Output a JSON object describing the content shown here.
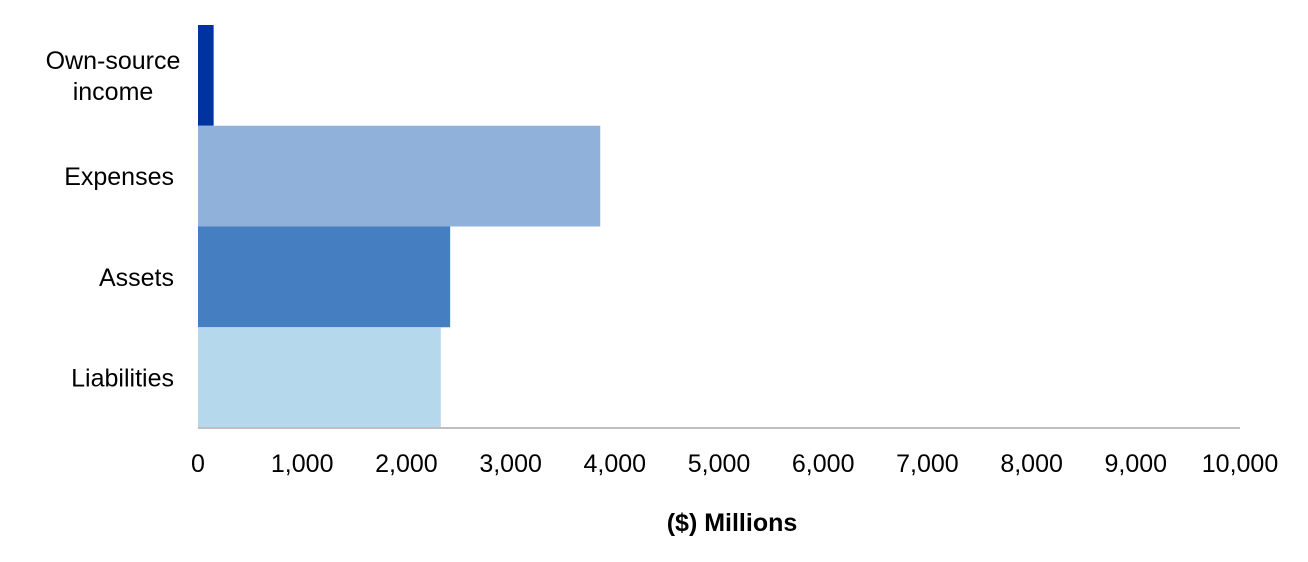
{
  "chart_data": {
    "type": "bar",
    "orientation": "horizontal",
    "categories": [
      "Own-source income",
      "Expenses",
      "Assets",
      "Liabilities"
    ],
    "category_lines": [
      [
        "Own-source",
        "income"
      ],
      [
        "Expenses"
      ],
      [
        "Assets"
      ],
      [
        "Liabilities"
      ]
    ],
    "values": [
      150,
      3860,
      2420,
      2330
    ],
    "colors": [
      "#0033a0",
      "#8fb1da",
      "#457ec1",
      "#b5d8ed"
    ],
    "xlabel": "($) Millions",
    "xlim": [
      0,
      10000
    ],
    "x_ticks": [
      "0",
      "1,000",
      "2,000",
      "3,000",
      "4,000",
      "5,000",
      "6,000",
      "7,000",
      "8,000",
      "9,000",
      "10,000"
    ],
    "grid": false,
    "legend": "none"
  }
}
